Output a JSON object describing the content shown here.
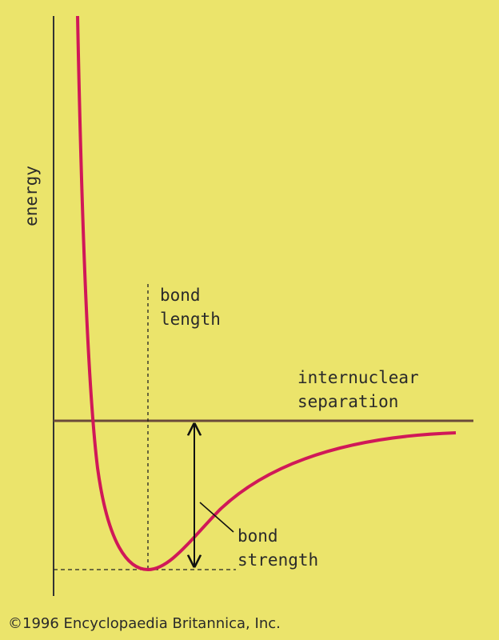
{
  "labels": {
    "y_axis": "energy",
    "bond_length": [
      "bond",
      "length"
    ],
    "x_axis": [
      "internuclear",
      "separation"
    ],
    "bond_strength": [
      "bond",
      "strength"
    ]
  },
  "copyright": "©1996 Encyclopaedia Britannica, Inc."
}
